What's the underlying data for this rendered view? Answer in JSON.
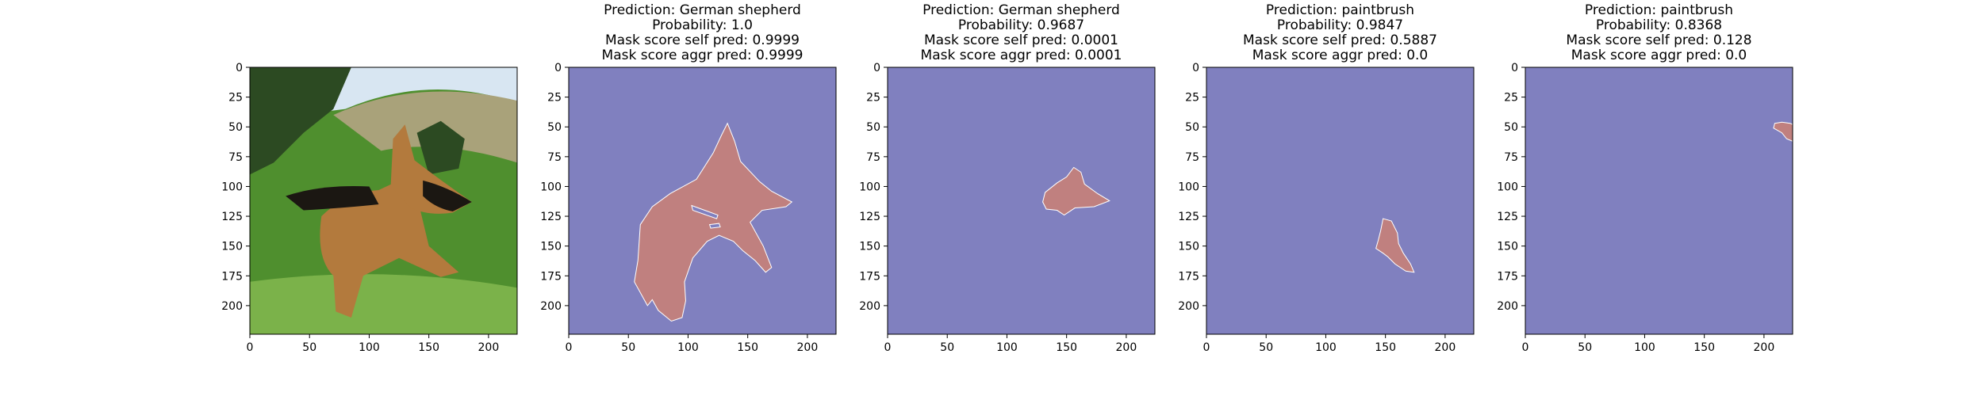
{
  "colors": {
    "background_class": "#8080bf",
    "mask_region": "#c0807f",
    "mask_edge": "#ffffff",
    "axis": "#000000"
  },
  "photo": {
    "description_icon": "german-shepherd-photo-icon",
    "sky": "#d8e6f2",
    "grass": "#4f8f2e",
    "grass_light": "#7bb24a",
    "hill": "#a9a27a",
    "tree": "#2c4a22",
    "dog_tan": "#b37a3d",
    "dog_black": "#1b1712"
  },
  "chart_data": [
    {
      "type": "image",
      "title_lines": [],
      "x_ticks": [
        0,
        50,
        100,
        150,
        200
      ],
      "y_ticks": [
        0,
        25,
        50,
        75,
        100,
        125,
        150,
        175,
        200
      ],
      "xlim": [
        0,
        224
      ],
      "ylim": [
        224,
        0
      ]
    },
    {
      "type": "heatmap",
      "title_lines": [
        "Prediction: German shepherd",
        "Probability: 1.0",
        "Mask score self pred: 0.9999",
        "Mask score aggr pred: 0.9999"
      ],
      "x_ticks": [
        0,
        50,
        100,
        150,
        200
      ],
      "y_ticks": [
        0,
        25,
        50,
        75,
        100,
        125,
        150,
        175,
        200
      ],
      "xlim": [
        0,
        224
      ],
      "ylim": [
        224,
        0
      ],
      "mask_polygon": [
        [
          133,
          47
        ],
        [
          139,
          62
        ],
        [
          144,
          79
        ],
        [
          160,
          96
        ],
        [
          170,
          104
        ],
        [
          187,
          113
        ],
        [
          182,
          117
        ],
        [
          162,
          120
        ],
        [
          152,
          130
        ],
        [
          163,
          150
        ],
        [
          170,
          168
        ],
        [
          165,
          172
        ],
        [
          156,
          162
        ],
        [
          146,
          154
        ],
        [
          138,
          146
        ],
        [
          126,
          141
        ],
        [
          116,
          146
        ],
        [
          104,
          160
        ],
        [
          97,
          180
        ],
        [
          98,
          196
        ],
        [
          95,
          210
        ],
        [
          86,
          213
        ],
        [
          75,
          204
        ],
        [
          70,
          195
        ],
        [
          66,
          200
        ],
        [
          55,
          180
        ],
        [
          58,
          162
        ],
        [
          60,
          132
        ],
        [
          70,
          117
        ],
        [
          85,
          106
        ],
        [
          107,
          94
        ],
        [
          121,
          72
        ],
        [
          128,
          57
        ]
      ],
      "cutouts": [
        [
          [
            103,
            116
          ],
          [
            125,
            124
          ],
          [
            124,
            127
          ],
          [
            104,
            120
          ]
        ],
        [
          [
            118,
            132
          ],
          [
            126,
            131
          ],
          [
            127,
            134
          ],
          [
            119,
            135
          ]
        ]
      ]
    },
    {
      "type": "heatmap",
      "title_lines": [
        "Prediction: German shepherd",
        "Probability: 0.9687",
        "Mask score self pred: 0.0001",
        "Mask score aggr pred: 0.0001"
      ],
      "x_ticks": [
        0,
        50,
        100,
        150,
        200
      ],
      "y_ticks": [
        0,
        25,
        50,
        75,
        100,
        125,
        150,
        175,
        200
      ],
      "xlim": [
        0,
        224
      ],
      "ylim": [
        224,
        0
      ],
      "mask_polygon": [
        [
          156,
          84
        ],
        [
          162,
          88
        ],
        [
          165,
          98
        ],
        [
          176,
          106
        ],
        [
          186,
          112
        ],
        [
          173,
          117
        ],
        [
          157,
          118
        ],
        [
          148,
          124
        ],
        [
          142,
          120
        ],
        [
          133,
          119
        ],
        [
          130,
          113
        ],
        [
          132,
          105
        ],
        [
          142,
          97
        ],
        [
          150,
          92
        ]
      ],
      "cutouts": []
    },
    {
      "type": "heatmap",
      "title_lines": [
        "Prediction: paintbrush",
        "Probability: 0.9847",
        "Mask score self pred: 0.5887",
        "Mask score aggr pred: 0.0"
      ],
      "x_ticks": [
        0,
        50,
        100,
        150,
        200
      ],
      "y_ticks": [
        0,
        25,
        50,
        75,
        100,
        125,
        150,
        175,
        200
      ],
      "xlim": [
        0,
        224
      ],
      "ylim": [
        224,
        0
      ],
      "mask_polygon": [
        [
          148,
          127
        ],
        [
          155,
          129
        ],
        [
          160,
          139
        ],
        [
          161,
          148
        ],
        [
          165,
          156
        ],
        [
          171,
          165
        ],
        [
          174,
          172
        ],
        [
          167,
          171
        ],
        [
          158,
          165
        ],
        [
          152,
          159
        ],
        [
          148,
          156
        ],
        [
          142,
          152
        ],
        [
          144,
          145
        ],
        [
          146,
          137
        ]
      ],
      "cutouts": []
    },
    {
      "type": "heatmap",
      "title_lines": [
        "Prediction: paintbrush",
        "Probability: 0.8368",
        "Mask score self pred: 0.128",
        "Mask score aggr pred: 0.0"
      ],
      "x_ticks": [
        0,
        50,
        100,
        150,
        200
      ],
      "y_ticks": [
        0,
        25,
        50,
        75,
        100,
        125,
        150,
        175,
        200
      ],
      "xlim": [
        0,
        224
      ],
      "ylim": [
        224,
        0
      ],
      "mask_polygon": [
        [
          209,
          47
        ],
        [
          215,
          46
        ],
        [
          222,
          47
        ],
        [
          224,
          48
        ],
        [
          224,
          62
        ],
        [
          219,
          60
        ],
        [
          215,
          55
        ],
        [
          208,
          51
        ]
      ],
      "cutouts": []
    }
  ]
}
